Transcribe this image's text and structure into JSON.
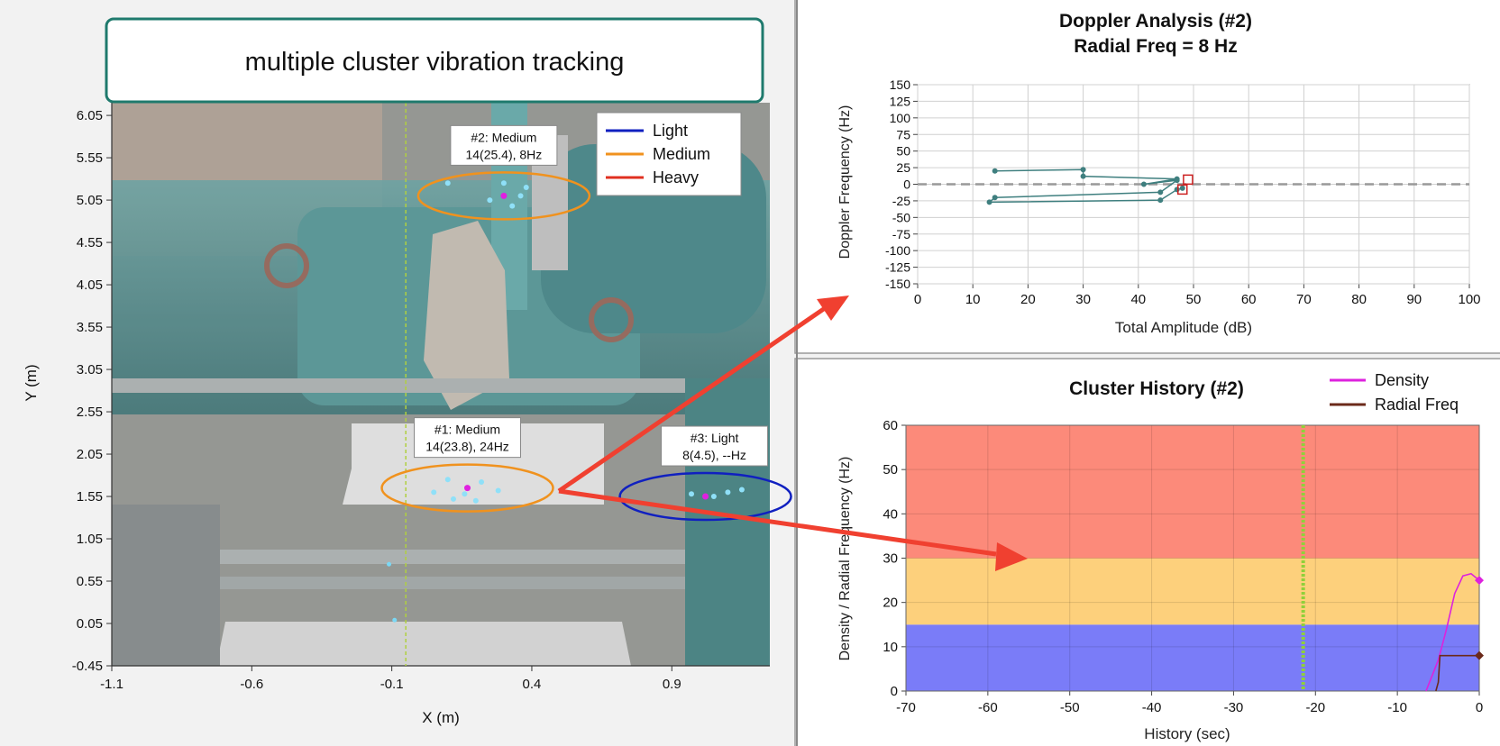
{
  "banner": {
    "title": "multiple cluster vibration tracking"
  },
  "chart_data": [
    {
      "type": "scatter",
      "title": "",
      "xlabel": "X (m)",
      "ylabel": "Y (m)",
      "xlim": [
        -1.1,
        1.25
      ],
      "ylim": [
        -0.45,
        6.2
      ],
      "x_ticks": [
        "-1.1",
        "-0.6",
        "-0.1",
        "0.4",
        "0.9"
      ],
      "y_ticks": [
        "-0.45",
        "0.05",
        "0.55",
        "1.05",
        "1.55",
        "2.05",
        "2.55",
        "3.05",
        "3.55",
        "4.05",
        "4.55",
        "5.05",
        "5.55",
        "6.05"
      ],
      "background": "photo of pipework with valves",
      "legend_position": "top-right",
      "legend": [
        {
          "name": "Light",
          "color": "#1020c0"
        },
        {
          "name": "Medium",
          "color": "#f0921e"
        },
        {
          "name": "Heavy",
          "color": "#e03020"
        }
      ],
      "clusters": [
        {
          "label_line1": "#1: Medium",
          "label_line2": "14(23.8), 24Hz",
          "x": 0.17,
          "y": 1.65,
          "color": "#f0921e",
          "points": [
            [
              0.1,
              1.75
            ],
            [
              0.22,
              1.72
            ],
            [
              0.28,
              1.62
            ],
            [
              0.12,
              1.52
            ],
            [
              0.05,
              1.6
            ],
            [
              0.2,
              1.5
            ],
            [
              0.16,
              1.58
            ]
          ]
        },
        {
          "label_line1": "#2: Medium",
          "label_line2": "14(25.4), 8Hz",
          "x": 0.3,
          "y": 5.1,
          "color": "#f0921e",
          "points": [
            [
              0.3,
              5.25
            ],
            [
              0.36,
              5.1
            ],
            [
              0.33,
              4.98
            ],
            [
              0.25,
              5.05
            ],
            [
              0.38,
              5.2
            ],
            [
              0.1,
              5.25
            ]
          ]
        },
        {
          "label_line1": "#3: Light",
          "label_line2": "8(4.5), --Hz",
          "x": 1.02,
          "y": 1.55,
          "color": "#1020c0",
          "points": [
            [
              0.97,
              1.58
            ],
            [
              1.05,
              1.55
            ],
            [
              1.1,
              1.6
            ],
            [
              1.15,
              1.63
            ]
          ]
        }
      ],
      "vertical_line_x": -0.05,
      "stray_points": [
        [
          -0.09,
          0.09
        ],
        [
          -0.11,
          0.75
        ]
      ]
    },
    {
      "type": "line",
      "title": "Doppler Analysis (#2)",
      "subtitle": "Radial Freq = 8 Hz",
      "xlabel": "Total Amplitude (dB)",
      "ylabel": "Doppler Frequency (Hz)",
      "xlim": [
        0,
        100
      ],
      "ylim": [
        -150,
        150
      ],
      "x_ticks": [
        "0",
        "10",
        "20",
        "30",
        "40",
        "50",
        "60",
        "70",
        "80",
        "90",
        "100"
      ],
      "y_ticks": [
        "150",
        "125",
        "100",
        "75",
        "50",
        "25",
        "0",
        "-25",
        "-50",
        "-75",
        "-100",
        "-125",
        "-150"
      ],
      "grid": true,
      "series": [
        {
          "color": "#3f7f7f",
          "x": [
            14,
            30,
            30,
            47,
            41,
            47,
            44,
            14,
            13,
            44,
            47,
            48
          ],
          "y": [
            20,
            22,
            12,
            8,
            0,
            6,
            -12,
            -20,
            -27,
            -24,
            -8,
            -6
          ]
        }
      ],
      "markers": [
        {
          "x": 49,
          "y": 7,
          "color": "#cc2222"
        },
        {
          "x": 48,
          "y": -8,
          "color": "#cc2222"
        }
      ]
    },
    {
      "type": "area",
      "title": "Cluster History (#2)",
      "xlabel": "History (sec)",
      "ylabel": "Density / Radial Frequency (Hz)",
      "xlim": [
        -70,
        0
      ],
      "ylim": [
        0,
        60
      ],
      "x_ticks": [
        "-70",
        "-60",
        "-50",
        "-40",
        "-30",
        "-20",
        "-10",
        "0"
      ],
      "y_ticks": [
        "0",
        "10",
        "20",
        "30",
        "40",
        "50",
        "60"
      ],
      "legend_position": "top-right",
      "bands": [
        {
          "from": 0,
          "to": 15,
          "color": "#7a7cf8"
        },
        {
          "from": 15,
          "to": 30,
          "color": "#fdd07c"
        },
        {
          "from": 30,
          "to": 60,
          "color": "#fc8a7a"
        }
      ],
      "vertical_line_x": -21.5,
      "series": [
        {
          "name": "Density",
          "color": "#dd22dd",
          "x": [
            -6.5,
            -5,
            -4,
            -3,
            -2,
            -1,
            0
          ],
          "y": [
            0,
            7,
            14,
            22,
            26,
            26.5,
            25
          ]
        },
        {
          "name": "Radial Freq",
          "color": "#6b2a1a",
          "x": [
            -5.3,
            -5,
            -4.8,
            0
          ],
          "y": [
            0,
            2,
            8,
            8
          ]
        }
      ]
    }
  ]
}
